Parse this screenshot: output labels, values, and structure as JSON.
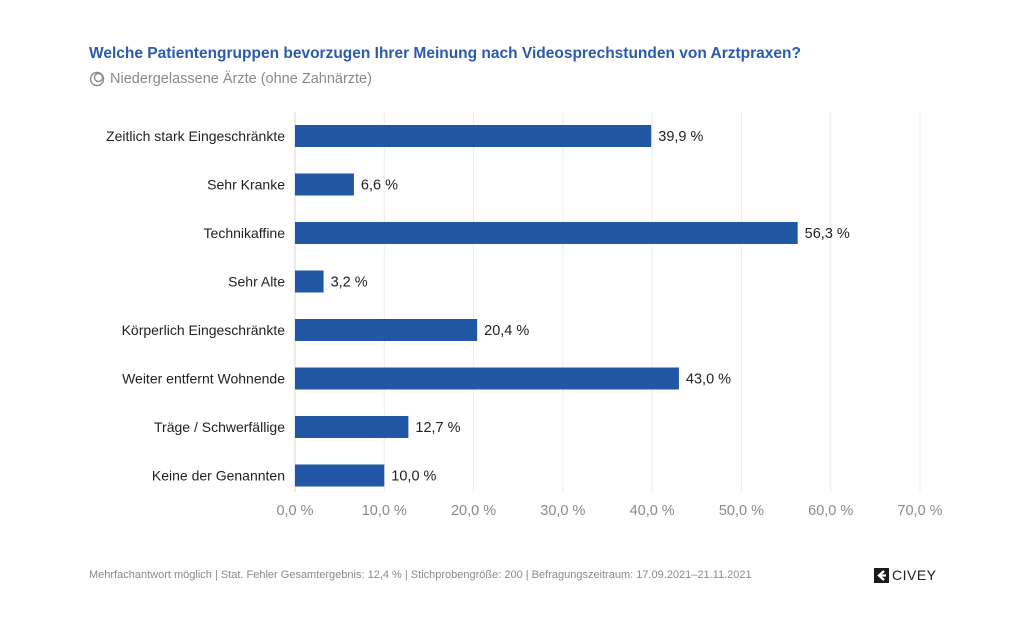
{
  "header": {
    "title": "Welche Patientengruppen bevorzugen Ihrer Meinung nach Videosprechstunden von Arztpraxen?",
    "subtitle": "Niedergelassene Ärzte (ohne Zahnärzte)",
    "subtitle_icon": "target-group-icon"
  },
  "footer": {
    "note": "Mehrfachantwort möglich | Stat. Fehler Gesamtergebnis: 12,4 % | Stichprobengröße: 200 | Befragungszeitraum: 17.09.2021–21.11.2021",
    "logo_text": "CIVEY",
    "logo_icon": "civey-logo-icon"
  },
  "colors": {
    "title": "#2a5caa",
    "bar": "#2257a5",
    "axis_text": "#8a8a8a",
    "label_text": "#222222",
    "grid": "#ececec"
  },
  "chart_data": {
    "type": "bar",
    "orientation": "horizontal",
    "title": "Welche Patientengruppen bevorzugen Ihrer Meinung nach Videosprechstunden von Arztpraxen?",
    "subtitle": "Niedergelassene Ärzte (ohne Zahnärzte)",
    "categories": [
      "Zeitlich stark Eingeschränkte",
      "Sehr Kranke",
      "Technikaffine",
      "Sehr Alte",
      "Körperlich Eingeschränkte",
      "Weiter entfernt Wohnende",
      "Träge / Schwerfällige",
      "Keine der Genannten"
    ],
    "values": [
      39.9,
      6.6,
      56.3,
      3.2,
      20.4,
      43.0,
      12.7,
      10.0
    ],
    "value_labels": [
      "39,9 %",
      "6,6 %",
      "56,3 %",
      "3,2 %",
      "20,4 %",
      "43,0 %",
      "12,7 %",
      "10,0 %"
    ],
    "xlabel": "",
    "ylabel": "",
    "xlim": [
      0,
      70
    ],
    "xticks": [
      0,
      10,
      20,
      30,
      40,
      50,
      60,
      70
    ],
    "xtick_labels": [
      "0,0 %",
      "10,0 %",
      "20,0 %",
      "30,0 %",
      "40,0 %",
      "50,0 %",
      "60,0 %",
      "70,0 %"
    ],
    "grid": true,
    "legend": "none"
  }
}
